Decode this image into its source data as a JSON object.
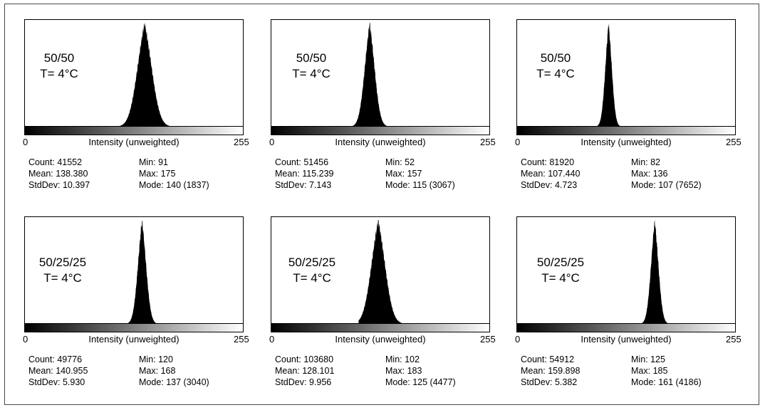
{
  "chart_data": [
    {
      "type": "histogram",
      "label_lines": [
        "50/50",
        "T= 4°C"
      ],
      "xlabel": "Intensity (unweighted)",
      "xlim": [
        0,
        255
      ],
      "x_tick_labels": [
        "0",
        "255"
      ],
      "stats": {
        "Count": "41552",
        "Mean": "138.380",
        "StdDev": "10.397",
        "Min": "91",
        "Max": "175",
        "Mode": "140 (1837)"
      },
      "stats_num": {
        "mean": 138.38,
        "std": 10.397,
        "min": 91,
        "max": 175,
        "mode": 140,
        "mode_count": 1837
      }
    },
    {
      "type": "histogram",
      "label_lines": [
        "50/50",
        "T= 4°C"
      ],
      "xlabel": "Intensity (unweighted)",
      "xlim": [
        0,
        255
      ],
      "x_tick_labels": [
        "0",
        "255"
      ],
      "stats": {
        "Count": "51456",
        "Mean": "115.239",
        "StdDev": "7.143",
        "Min": "52",
        "Max": "157",
        "Mode": "115 (3067)"
      },
      "stats_num": {
        "mean": 115.239,
        "std": 7.143,
        "min": 52,
        "max": 157,
        "mode": 115,
        "mode_count": 3067
      }
    },
    {
      "type": "histogram",
      "label_lines": [
        "50/50",
        "T= 4°C"
      ],
      "xlabel": "Intensity (unweighted)",
      "xlim": [
        0,
        255
      ],
      "x_tick_labels": [
        "0",
        "255"
      ],
      "stats": {
        "Count": "81920",
        "Mean": "107.440",
        "StdDev": "4.723",
        "Min": "82",
        "Max": "136",
        "Mode": "107 (7652)"
      },
      "stats_num": {
        "mean": 107.44,
        "std": 4.723,
        "min": 82,
        "max": 136,
        "mode": 107,
        "mode_count": 7652
      }
    },
    {
      "type": "histogram",
      "label_lines": [
        "50/25/25",
        "T= 4°C"
      ],
      "xlabel": "Intensity (unweighted)",
      "xlim": [
        0,
        255
      ],
      "x_tick_labels": [
        "0",
        "255"
      ],
      "stats": {
        "Count": "49776",
        "Mean": "140.955",
        "StdDev": "5.930",
        "Min": "120",
        "Max": "168",
        "Mode": "137 (3040)"
      },
      "stats_num": {
        "mean": 140.955,
        "std": 5.93,
        "min": 120,
        "max": 168,
        "mode": 137,
        "mode_count": 3040
      }
    },
    {
      "type": "histogram",
      "label_lines": [
        "50/25/25",
        "T= 4°C"
      ],
      "xlabel": "Intensity (unweighted)",
      "xlim": [
        0,
        255
      ],
      "x_tick_labels": [
        "0",
        "255"
      ],
      "stats": {
        "Count": "103680",
        "Mean": "128.101",
        "StdDev": "9.956",
        "Min": "102",
        "Max": "183",
        "Mode": "125 (4477)"
      },
      "stats_num": {
        "mean": 128.101,
        "std": 9.956,
        "min": 102,
        "max": 183,
        "mode": 125,
        "mode_count": 4477
      }
    },
    {
      "type": "histogram",
      "label_lines": [
        "50/25/25",
        "T= 4°C"
      ],
      "xlabel": "Intensity (unweighted)",
      "xlim": [
        0,
        255
      ],
      "x_tick_labels": [
        "0",
        "255"
      ],
      "stats": {
        "Count": "54912",
        "Mean": "159.898",
        "StdDev": "5.382",
        "Min": "125",
        "Max": "185",
        "Mode": "161 (4186)"
      },
      "stats_num": {
        "mean": 159.898,
        "std": 5.382,
        "min": 125,
        "max": 185,
        "mode": 161,
        "mode_count": 4186
      }
    }
  ]
}
